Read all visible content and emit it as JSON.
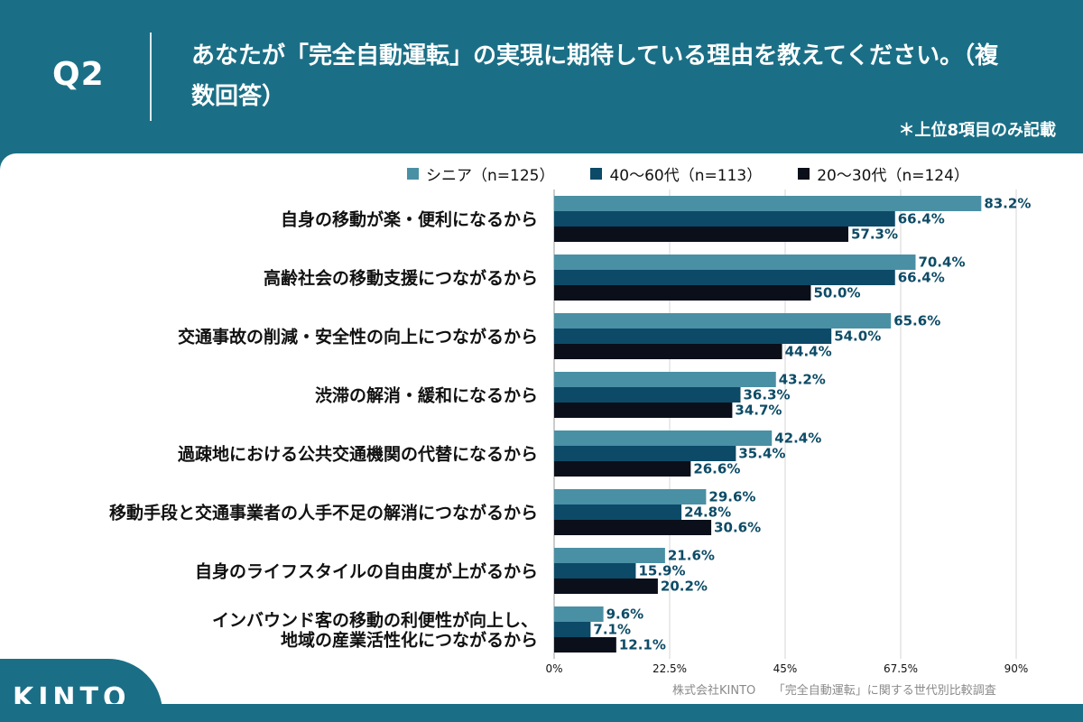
{
  "header": {
    "q_label": "Q2",
    "title": "あなたが「完全自動運転」の実現に期待している理由を教えてください。（複数回答）",
    "note": "＊上位8項目のみ記載"
  },
  "colors": {
    "background": "#1a6f86",
    "senior": "#4a90a4",
    "mid": "#0c4a68",
    "young": "#0a0f1a"
  },
  "chart_data": {
    "type": "bar",
    "orientation": "horizontal",
    "categories": [
      "自身の移動が楽・便利になるから",
      "高齢社会の移動支援につながるから",
      "交通事故の削減・安全性の向上につながるから",
      "渋滞の解消・緩和になるから",
      "過疎地における公共交通機関の代替になるから",
      "移動手段と交通事業者の人手不足の解消につながるから",
      "自身のライフスタイルの自由度が上がるから",
      "インバウンド客の移動の利便性が向上し、\n地域の産業活性化につながるから"
    ],
    "series": [
      {
        "name": "シニア（n=125）",
        "color": "#4a90a4",
        "values": [
          83.2,
          70.4,
          65.6,
          43.2,
          42.4,
          29.6,
          21.6,
          9.6
        ]
      },
      {
        "name": "40〜60代（n=113）",
        "color": "#0c4a68",
        "values": [
          66.4,
          66.4,
          54.0,
          36.3,
          35.4,
          24.8,
          15.9,
          7.1
        ]
      },
      {
        "name": "20〜30代（n=124）",
        "color": "#0a0f1a",
        "values": [
          57.3,
          50.0,
          44.4,
          34.7,
          26.6,
          30.6,
          20.2,
          12.1
        ]
      }
    ],
    "value_labels": [
      [
        "83.2%",
        "70.4%",
        "65.6%",
        "43.2%",
        "42.4%",
        "29.6%",
        "21.6%",
        "9.6%"
      ],
      [
        "66.4%",
        "66.4%",
        "54.0%",
        "36.3%",
        "35.4%",
        "24.8%",
        "15.9%",
        "7.1%"
      ],
      [
        "57.3%",
        "50.0%",
        "44.4%",
        "34.7%",
        "26.6%",
        "30.6%",
        "20.2%",
        "12.1%"
      ]
    ],
    "xlim": [
      0,
      90
    ],
    "xticks": [
      0,
      22.5,
      45,
      67.5,
      90
    ],
    "xtick_labels": [
      "0%",
      "22.5%",
      "45%",
      "67.5%",
      "90%"
    ],
    "grid": true,
    "legend_position": "top"
  },
  "footer": {
    "source": "株式会社KINTO　　「完全自動運転」に関する世代別比較調査",
    "logo": "KINTO"
  }
}
